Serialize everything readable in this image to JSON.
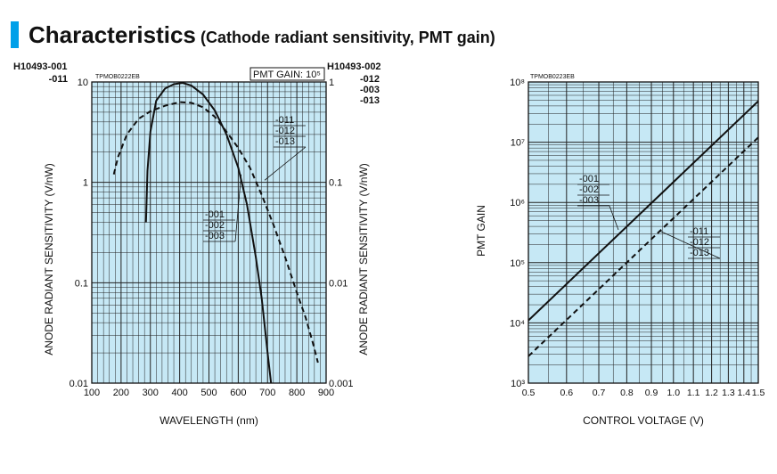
{
  "header": {
    "title": "Characteristics",
    "subtitle": "(Cathode radiant sensitivity, PMT gain)",
    "accent_color": "#00a0e9"
  },
  "chart_data": [
    {
      "type": "line",
      "code": "TPMOB0222EB",
      "gain_box": "PMT GAIN: 10⁵",
      "models_left": [
        "H10493-001",
        "-011"
      ],
      "models_right": [
        "H10493-002",
        "-012",
        "-003",
        "-013"
      ],
      "xlabel": "WAVELENGTH (nm)",
      "ylabel_left": "ANODE RADIANT SENSITIVITY (V/nW)",
      "ylabel_right": "ANODE RADIANT SENSITIVITY (V/nW)",
      "x_scale": "linear",
      "y_scale": "log",
      "xlim": [
        100,
        900
      ],
      "ylim_left": [
        0.01,
        10
      ],
      "ylim_right": [
        0.001,
        1
      ],
      "x_ticks": [
        "100",
        "200",
        "300",
        "400",
        "500",
        "600",
        "700",
        "800",
        "900"
      ],
      "y_ticks_left": [
        "0.01",
        "0.1",
        "1",
        "10"
      ],
      "y_ticks_right": [
        "0.001",
        "0.01",
        "0.1",
        "1"
      ],
      "grid": true,
      "background_color": "#c6e8f5",
      "series": [
        {
          "name_lines": [
            "-001",
            "-002",
            "-003"
          ],
          "style": "solid",
          "points": [
            [
              285,
              0.4
            ],
            [
              290,
              1.3
            ],
            [
              300,
              3.2
            ],
            [
              320,
              6.5
            ],
            [
              350,
              8.6
            ],
            [
              380,
              9.5
            ],
            [
              410,
              9.8
            ],
            [
              440,
              9.2
            ],
            [
              480,
              7.5
            ],
            [
              520,
              5.2
            ],
            [
              560,
              3.0
            ],
            [
              600,
              1.4
            ],
            [
              630,
              0.6
            ],
            [
              660,
              0.18
            ],
            [
              680,
              0.07
            ],
            [
              700,
              0.02
            ],
            [
              712,
              0.01
            ]
          ]
        },
        {
          "name_lines": [
            "-011",
            "-012",
            "-013"
          ],
          "style": "dashed",
          "points": [
            [
              175,
              1.2
            ],
            [
              190,
              1.8
            ],
            [
              220,
              3.0
            ],
            [
              260,
              4.3
            ],
            [
              300,
              5.1
            ],
            [
              350,
              5.8
            ],
            [
              400,
              6.3
            ],
            [
              440,
              6.2
            ],
            [
              480,
              5.6
            ],
            [
              520,
              4.5
            ],
            [
              560,
              3.2
            ],
            [
              600,
              2.2
            ],
            [
              640,
              1.4
            ],
            [
              680,
              0.75
            ],
            [
              720,
              0.38
            ],
            [
              760,
              0.18
            ],
            [
              800,
              0.08
            ],
            [
              830,
              0.045
            ],
            [
              855,
              0.025
            ],
            [
              872,
              0.016
            ]
          ]
        }
      ]
    },
    {
      "type": "line",
      "code": "TPMOB0223EB",
      "xlabel": "CONTROL VOLTAGE (V)",
      "ylabel": "PMT GAIN",
      "x_scale": "log",
      "y_scale": "log",
      "xlim": [
        0.5,
        1.5
      ],
      "ylim": [
        1000,
        100000000
      ],
      "x_ticks": [
        "0.5",
        "0.6",
        "0.7",
        "0.8",
        "0.9",
        "1.0",
        "1.1",
        "1.2",
        "1.3",
        "1.4",
        "1.5"
      ],
      "y_ticks": [
        "10³",
        "10⁴",
        "10⁵",
        "10⁶",
        "10⁷",
        "10⁸"
      ],
      "grid": true,
      "background_color": "#c6e8f5",
      "series": [
        {
          "name_lines": [
            "-001",
            "-002",
            "-003"
          ],
          "style": "solid",
          "points": [
            [
              0.5,
              11000
            ],
            [
              1.5,
              48000000
            ]
          ]
        },
        {
          "name_lines": [
            "-011",
            "-012",
            "-013"
          ],
          "style": "dashed",
          "points": [
            [
              0.5,
              2800
            ],
            [
              1.5,
              12000000
            ]
          ]
        }
      ]
    }
  ]
}
